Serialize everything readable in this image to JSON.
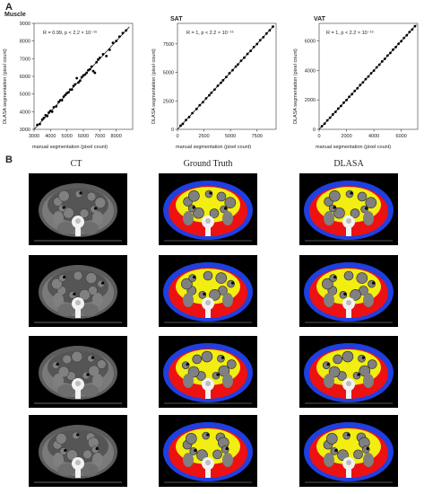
{
  "panel_a_label": "A",
  "panel_b_label": "B",
  "plots": [
    {
      "title": "Muscle",
      "annotation": "R = 0.99, p < 2.2 × 10⁻¹⁶",
      "xlabel": "manual segmentation (pixel count)",
      "ylabel": "DLASA segmentation (pixel count)",
      "xticks": [
        3000,
        4000,
        5000,
        6000,
        7000,
        8000
      ],
      "yticks": [
        3000,
        4000,
        5000,
        6000,
        7000,
        8000,
        9000
      ],
      "xlim": [
        3000,
        9000
      ],
      "ylim": [
        3000,
        9000
      ]
    },
    {
      "title": "SAT",
      "annotation": "R = 1, p < 2.2 × 10⁻¹⁶",
      "xlabel": "manual segmentation (pixel count)",
      "ylabel": "DLASA segmentation (pixel count)",
      "xticks": [
        0,
        2500,
        5000,
        7500
      ],
      "yticks": [
        0,
        2500,
        5000,
        7500
      ],
      "xlim": [
        0,
        9300
      ],
      "ylim": [
        0,
        9300
      ]
    },
    {
      "title": "VAT",
      "annotation": "R = 1, p < 2.2 × 10⁻¹⁶",
      "xlabel": "manual segmentation (pixel count)",
      "ylabel": "DLASA segmentation (pixel count)",
      "xticks": [
        0,
        2000,
        4000,
        6000
      ],
      "yticks": [
        0,
        2000,
        4000,
        6000
      ],
      "xlim": [
        0,
        7200
      ],
      "ylim": [
        0,
        7200
      ]
    }
  ],
  "chart_data": [
    {
      "type": "scatter",
      "title": "Muscle",
      "xlabel": "manual segmentation (pixel count)",
      "ylabel": "DLASA segmentation (pixel count)",
      "xlim": [
        3000,
        9000
      ],
      "ylim": [
        3000,
        9000
      ],
      "x": [
        3200,
        3350,
        3500,
        3600,
        3700,
        3800,
        3900,
        4000,
        4100,
        4200,
        4350,
        4500,
        4600,
        4700,
        4800,
        4900,
        5000,
        5100,
        5200,
        5300,
        5400,
        5500,
        5600,
        5700,
        5800,
        5900,
        6000,
        6100,
        6200,
        6300,
        6400,
        6500,
        6600,
        6700,
        6800,
        6900,
        7000,
        7200,
        7400,
        7600,
        7800,
        8000,
        8200,
        8400,
        8600
      ],
      "y": [
        3250,
        3300,
        3550,
        3650,
        3800,
        3750,
        3950,
        4050,
        4000,
        4250,
        4300,
        4550,
        4650,
        4650,
        4850,
        4950,
        5050,
        5100,
        5250,
        5250,
        5450,
        5550,
        5900,
        5650,
        5750,
        5950,
        6050,
        6100,
        6200,
        6350,
        6400,
        6550,
        6300,
        6200,
        6800,
        6950,
        7050,
        7250,
        7150,
        7500,
        7900,
        8000,
        8250,
        8450,
        8600
      ],
      "fit": [
        [
          3000,
          3000
        ],
        [
          8800,
          8800
        ]
      ]
    },
    {
      "type": "scatter",
      "title": "SAT",
      "xlabel": "manual segmentation (pixel count)",
      "ylabel": "DLASA segmentation (pixel count)",
      "xlim": [
        0,
        9300
      ],
      "ylim": [
        0,
        9300
      ],
      "x": [
        300,
        500,
        800,
        1100,
        1400,
        1800,
        2100,
        2400,
        2700,
        3000,
        3200,
        3500,
        3800,
        4100,
        4300,
        4600,
        4900,
        5200,
        5500,
        5700,
        6000,
        6300,
        6600,
        6900,
        7200,
        7500,
        7800,
        8100,
        8400,
        8700,
        9000
      ],
      "y": [
        320,
        480,
        820,
        1080,
        1420,
        1790,
        2120,
        2380,
        2720,
        2990,
        3210,
        3490,
        3820,
        4090,
        4310,
        4590,
        4920,
        5190,
        5510,
        5690,
        6020,
        6290,
        6620,
        6880,
        7220,
        7490,
        7820,
        8090,
        8410,
        8690,
        9010
      ],
      "fit": [
        [
          0,
          0
        ],
        [
          9100,
          9100
        ]
      ]
    },
    {
      "type": "scatter",
      "title": "VAT",
      "xlabel": "manual segmentation (pixel count)",
      "ylabel": "DLASA segmentation (pixel count)",
      "xlim": [
        0,
        7200
      ],
      "ylim": [
        0,
        7200
      ],
      "x": [
        200,
        400,
        600,
        800,
        1000,
        1200,
        1400,
        1600,
        1800,
        2000,
        2200,
        2400,
        2600,
        2800,
        3000,
        3200,
        3400,
        3600,
        3800,
        4000,
        4200,
        4400,
        4600,
        4800,
        5000,
        5200,
        5400,
        5600,
        5800,
        6000,
        6200,
        6400,
        6600,
        6800,
        7000
      ],
      "y": [
        210,
        390,
        610,
        790,
        1010,
        1190,
        1410,
        1590,
        1810,
        1990,
        2210,
        2390,
        2610,
        2790,
        3010,
        3190,
        3410,
        3590,
        3810,
        3990,
        4210,
        4390,
        4610,
        4790,
        5010,
        5190,
        5410,
        5590,
        5810,
        5990,
        6210,
        6390,
        6610,
        6790,
        7010
      ],
      "fit": [
        [
          0,
          0
        ],
        [
          7100,
          7100
        ]
      ]
    }
  ],
  "columns": [
    "CT",
    "Ground Truth",
    "DLASA"
  ],
  "colors": {
    "sat": "#1f3fe0",
    "muscle": "#ee1111",
    "vat": "#f2ee11",
    "background": "#000000",
    "bone": "#f2f2f2",
    "bowel": "#808080"
  }
}
